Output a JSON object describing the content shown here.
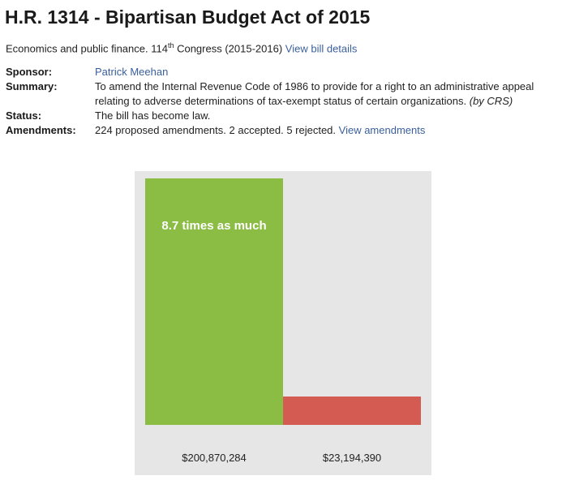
{
  "bill": {
    "title": "H.R. 1314 - Bipartisan Budget Act of 2015",
    "topic": "Economics and public finance. ",
    "congress_num": "114",
    "congress_sup": "th",
    "congress_rest": " Congress (2015-2016) ",
    "details_link": "View bill details"
  },
  "meta": {
    "sponsor_label": "Sponsor:",
    "sponsor_value": "Patrick Meehan",
    "summary_label": "Summary:",
    "summary_value": "To amend the Internal Revenue Code of 1986 to provide for a right to an administrative appeal relating to adverse determinations of tax-exempt status of certain organizations. ",
    "summary_source": "(by CRS)",
    "status_label": "Status:",
    "status_value": "The bill has become law.",
    "amendments_label": "Amendments:",
    "amendments_value": "224 proposed amendments. 2 accepted. 5 rejected. ",
    "amendments_link": "View amendments"
  },
  "chart_data": {
    "type": "bar",
    "categories": [
      "$200,870,284",
      "$23,194,390"
    ],
    "values": [
      200870284,
      23194390
    ],
    "colors": [
      "#8bbd45",
      "#d45b51"
    ],
    "annotation": "8.7 times as much",
    "ylim": [
      0,
      200870284
    ]
  }
}
